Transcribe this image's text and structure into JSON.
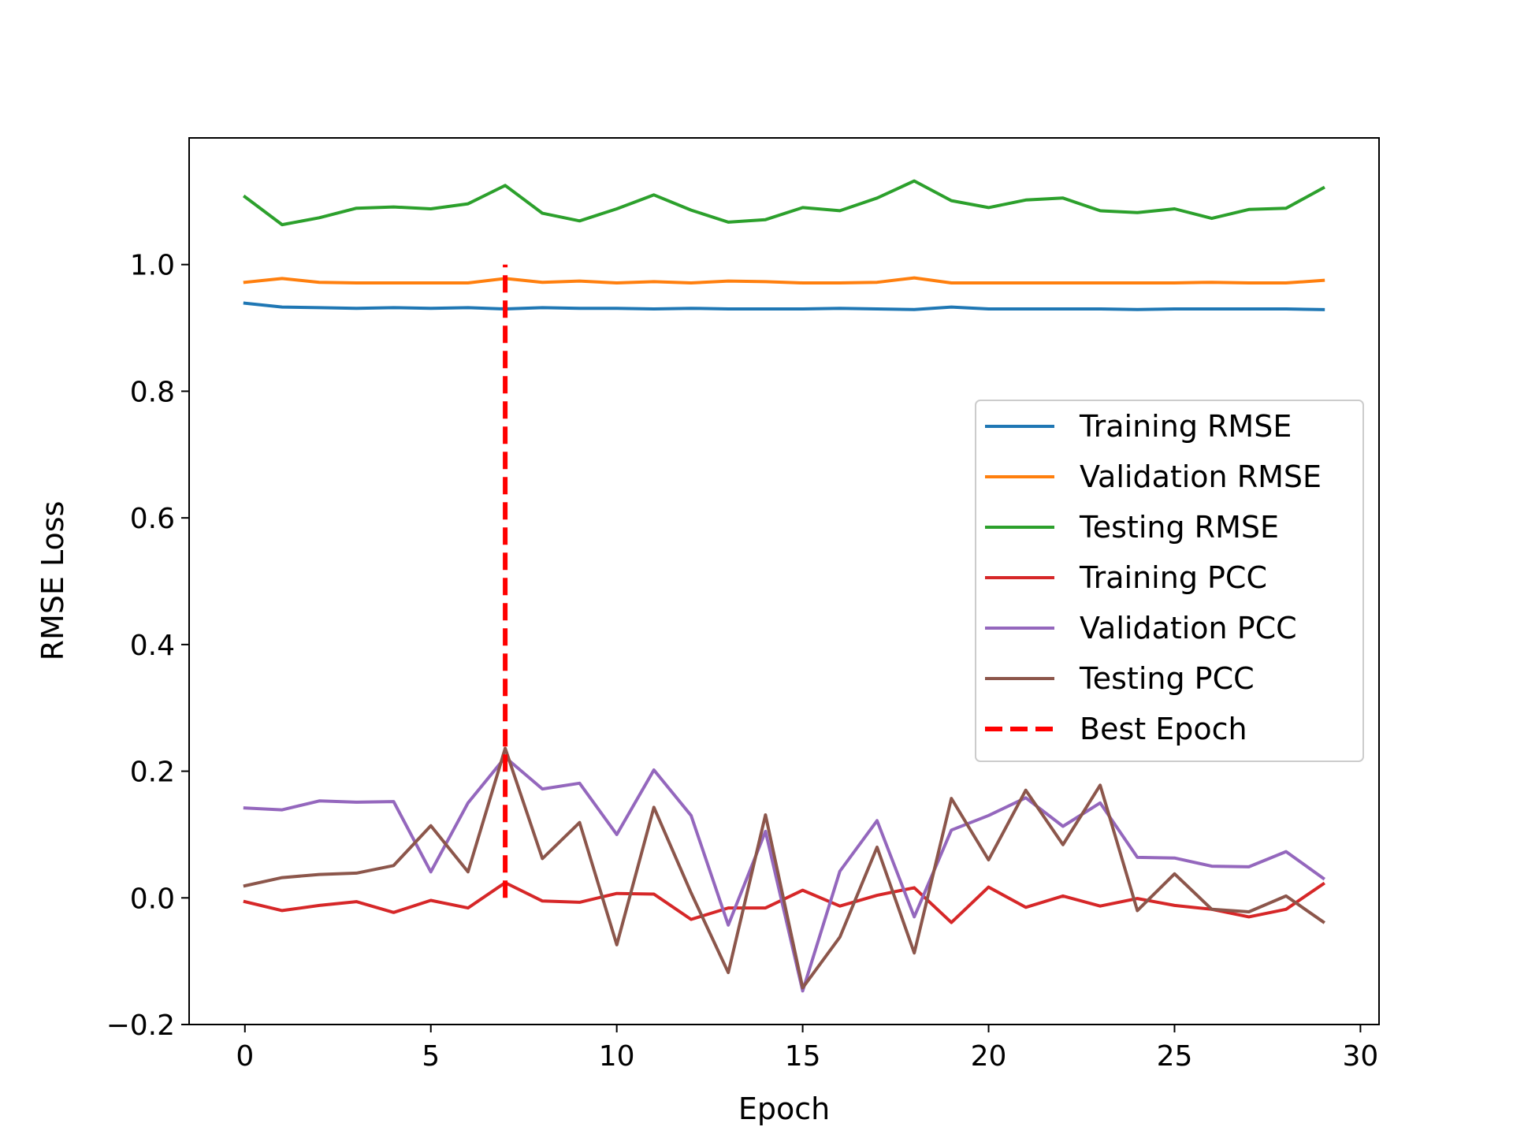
{
  "chart_data": {
    "type": "line",
    "xlabel": "Epoch",
    "ylabel": "RMSE Loss",
    "xlim": [
      -1.5,
      30.5
    ],
    "ylim": [
      -0.2,
      1.2
    ],
    "xticks": [
      0,
      5,
      10,
      15,
      20,
      25,
      30
    ],
    "xtick_labels": [
      "0",
      "5",
      "10",
      "15",
      "20",
      "25",
      "30"
    ],
    "yticks": [
      -0.2,
      0.0,
      0.2,
      0.4,
      0.6,
      0.8,
      1.0
    ],
    "ytick_labels": [
      "−0.2",
      "0.0",
      "0.2",
      "0.4",
      "0.6",
      "0.8",
      "1.0"
    ],
    "grid": false,
    "legend_position": "center-right",
    "x": [
      0,
      1,
      2,
      3,
      4,
      5,
      6,
      7,
      8,
      9,
      10,
      11,
      12,
      13,
      14,
      15,
      16,
      17,
      18,
      19,
      20,
      21,
      22,
      23,
      24,
      25,
      26,
      27,
      28,
      29
    ],
    "series": [
      {
        "name": "Training RMSE",
        "color": "#1f77b4",
        "dash": false,
        "values": [
          0.939,
          0.933,
          0.932,
          0.931,
          0.932,
          0.931,
          0.932,
          0.93,
          0.932,
          0.931,
          0.931,
          0.93,
          0.931,
          0.93,
          0.93,
          0.93,
          0.931,
          0.93,
          0.929,
          0.933,
          0.93,
          0.93,
          0.93,
          0.93,
          0.929,
          0.93,
          0.93,
          0.93,
          0.93,
          0.929
        ]
      },
      {
        "name": "Validation RMSE",
        "color": "#ff7f0e",
        "dash": false,
        "values": [
          0.972,
          0.978,
          0.972,
          0.971,
          0.971,
          0.971,
          0.971,
          0.978,
          0.972,
          0.974,
          0.971,
          0.973,
          0.971,
          0.974,
          0.973,
          0.971,
          0.971,
          0.972,
          0.979,
          0.971,
          0.971,
          0.971,
          0.971,
          0.971,
          0.971,
          0.971,
          0.972,
          0.971,
          0.971,
          0.975
        ]
      },
      {
        "name": "Testing RMSE",
        "color": "#2ca02c",
        "dash": false,
        "values": [
          1.107,
          1.063,
          1.074,
          1.089,
          1.091,
          1.088,
          1.096,
          1.125,
          1.081,
          1.069,
          1.088,
          1.11,
          1.086,
          1.067,
          1.071,
          1.09,
          1.085,
          1.105,
          1.132,
          1.101,
          1.09,
          1.102,
          1.105,
          1.085,
          1.082,
          1.088,
          1.073,
          1.087,
          1.089,
          1.121
        ]
      },
      {
        "name": "Training PCC",
        "color": "#d62728",
        "dash": false,
        "values": [
          -0.006,
          -0.02,
          -0.012,
          -0.006,
          -0.023,
          -0.004,
          -0.016,
          0.024,
          -0.005,
          -0.007,
          0.007,
          0.006,
          -0.034,
          -0.016,
          -0.016,
          0.012,
          -0.013,
          0.004,
          0.016,
          -0.039,
          0.017,
          -0.015,
          0.003,
          -0.013,
          -0.001,
          -0.012,
          -0.018,
          -0.03,
          -0.018,
          0.022
        ]
      },
      {
        "name": "Validation PCC",
        "color": "#9467bd",
        "dash": false,
        "values": [
          0.142,
          0.139,
          0.153,
          0.151,
          0.152,
          0.041,
          0.15,
          0.222,
          0.172,
          0.181,
          0.1,
          0.202,
          0.13,
          -0.043,
          0.105,
          -0.147,
          0.042,
          0.122,
          -0.03,
          0.107,
          0.13,
          0.158,
          0.113,
          0.15,
          0.064,
          0.063,
          0.05,
          0.049,
          0.073,
          0.031
        ]
      },
      {
        "name": "Testing PCC",
        "color": "#8c564b",
        "dash": false,
        "values": [
          0.019,
          0.032,
          0.037,
          0.039,
          0.051,
          0.114,
          0.041,
          0.236,
          0.062,
          0.119,
          -0.074,
          0.143,
          0.008,
          -0.118,
          0.131,
          -0.142,
          -0.062,
          0.08,
          -0.087,
          0.157,
          0.06,
          0.17,
          0.084,
          0.178,
          -0.02,
          0.038,
          -0.018,
          -0.022,
          0.003,
          -0.038
        ]
      },
      {
        "name": "Best Epoch",
        "color": "#ff0000",
        "dash": true,
        "vline_x": 7,
        "vline_y": [
          0.0,
          1.0
        ]
      }
    ]
  }
}
